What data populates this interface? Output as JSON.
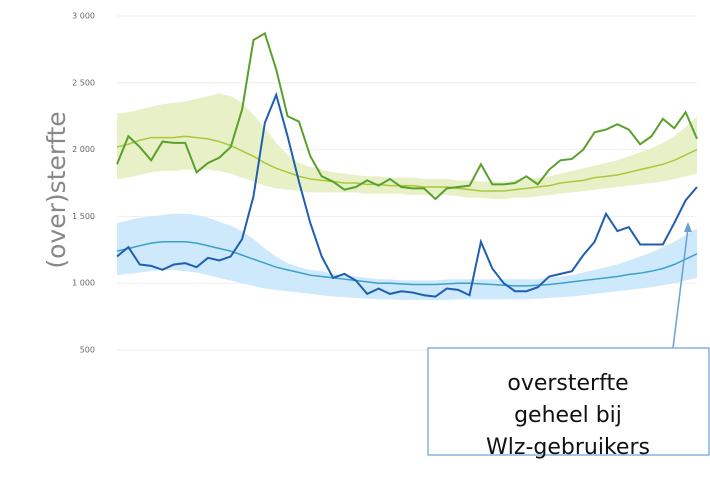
{
  "chart_data": {
    "type": "line",
    "y_label": "(over)sterfte",
    "ylim": [
      500,
      3000
    ],
    "yticks": [
      {
        "value": 500,
        "label": "500"
      },
      {
        "value": 1000,
        "label": "1 000"
      },
      {
        "value": 1500,
        "label": "1 500"
      },
      {
        "value": 2000,
        "label": "2 000"
      },
      {
        "value": 2500,
        "label": "2 500"
      },
      {
        "value": 3000,
        "label": "3 000"
      }
    ],
    "grid": true,
    "series": [
      {
        "color": "#3da0c8",
        "band_color": "#cde9fb",
        "values": [
          1240,
          1260,
          1280,
          1300,
          1310,
          1310,
          1310,
          1300,
          1280,
          1260,
          1240,
          1210,
          1180,
          1150,
          1120,
          1100,
          1080,
          1060,
          1050,
          1040,
          1030,
          1020,
          1010,
          1000,
          1000,
          995,
          990,
          990,
          990,
          995,
          1000,
          1000,
          995,
          990,
          985,
          980,
          980,
          985,
          990,
          1000,
          1010,
          1020,
          1030,
          1040,
          1050,
          1065,
          1075,
          1090,
          1110,
          1140,
          1180,
          1220
        ],
        "band_upper": [
          1450,
          1470,
          1490,
          1500,
          1510,
          1520,
          1520,
          1510,
          1490,
          1460,
          1430,
          1390,
          1330,
          1260,
          1200,
          1150,
          1120,
          1100,
          1090,
          1070,
          1060,
          1050,
          1040,
          1030,
          1030,
          1020,
          1020,
          1020,
          1020,
          1030,
          1030,
          1030,
          1030,
          1030,
          1030,
          1030,
          1030,
          1030,
          1040,
          1050,
          1060,
          1080,
          1100,
          1120,
          1140,
          1170,
          1200,
          1230,
          1270,
          1310,
          1360,
          1410
        ],
        "band_lower": [
          1060,
          1070,
          1080,
          1090,
          1100,
          1100,
          1090,
          1080,
          1060,
          1040,
          1020,
          1000,
          980,
          960,
          950,
          940,
          930,
          920,
          910,
          900,
          895,
          890,
          885,
          880,
          880,
          875,
          875,
          875,
          875,
          875,
          880,
          880,
          880,
          880,
          880,
          880,
          880,
          885,
          890,
          895,
          900,
          910,
          920,
          930,
          940,
          950,
          960,
          970,
          985,
          1000,
          1020,
          1040
        ]
      },
      {
        "color": "#a8c83a",
        "band_color": "#e8f0c8",
        "values": [
          2020,
          2040,
          2070,
          2090,
          2090,
          2090,
          2100,
          2090,
          2080,
          2060,
          2030,
          1990,
          1950,
          1900,
          1860,
          1830,
          1800,
          1780,
          1770,
          1760,
          1750,
          1750,
          1740,
          1740,
          1730,
          1730,
          1730,
          1720,
          1720,
          1720,
          1710,
          1700,
          1690,
          1690,
          1690,
          1700,
          1710,
          1720,
          1730,
          1750,
          1760,
          1770,
          1790,
          1800,
          1810,
          1830,
          1850,
          1870,
          1890,
          1920,
          1960,
          2000
        ],
        "band_upper": [
          2270,
          2280,
          2300,
          2320,
          2340,
          2350,
          2360,
          2380,
          2400,
          2420,
          2400,
          2350,
          2260,
          2160,
          2050,
          1960,
          1900,
          1870,
          1850,
          1830,
          1820,
          1810,
          1800,
          1800,
          1790,
          1790,
          1790,
          1780,
          1780,
          1780,
          1770,
          1770,
          1760,
          1760,
          1760,
          1770,
          1780,
          1790,
          1800,
          1820,
          1840,
          1860,
          1880,
          1900,
          1920,
          1950,
          1980,
          2010,
          2050,
          2100,
          2170,
          2250
        ],
        "band_lower": [
          1780,
          1790,
          1810,
          1830,
          1840,
          1840,
          1850,
          1850,
          1850,
          1840,
          1820,
          1790,
          1760,
          1730,
          1710,
          1700,
          1690,
          1680,
          1680,
          1680,
          1680,
          1680,
          1670,
          1670,
          1670,
          1670,
          1660,
          1660,
          1660,
          1660,
          1650,
          1640,
          1640,
          1630,
          1630,
          1640,
          1640,
          1650,
          1660,
          1670,
          1680,
          1690,
          1700,
          1710,
          1720,
          1730,
          1740,
          1750,
          1760,
          1780,
          1800,
          1820
        ]
      },
      {
        "color": "#5aa02c",
        "values": [
          1890,
          2100,
          2020,
          1920,
          2060,
          2050,
          2050,
          1830,
          1900,
          1940,
          2020,
          2300,
          2820,
          2870,
          2600,
          2250,
          2210,
          1950,
          1800,
          1760,
          1700,
          1720,
          1770,
          1730,
          1780,
          1720,
          1710,
          1710,
          1630,
          1710,
          1720,
          1730,
          1890,
          1740,
          1740,
          1750,
          1800,
          1740,
          1850,
          1920,
          1930,
          2000,
          2130,
          2150,
          2190,
          2150,
          2040,
          2100,
          2230,
          2160,
          2280,
          2080
        ]
      },
      {
        "color": "#1f5fae",
        "values": [
          1200,
          1270,
          1140,
          1130,
          1100,
          1140,
          1150,
          1120,
          1190,
          1170,
          1200,
          1330,
          1650,
          2200,
          2410,
          2100,
          1760,
          1450,
          1200,
          1040,
          1070,
          1020,
          920,
          960,
          920,
          940,
          930,
          910,
          900,
          960,
          950,
          910,
          1310,
          1110,
          1000,
          940,
          940,
          970,
          1050,
          1070,
          1090,
          1210,
          1310,
          1520,
          1390,
          1420,
          1290,
          1290,
          1290,
          1450,
          1620,
          1720
        ]
      }
    ],
    "annotation": [
      "oversterfte",
      "geheel bij",
      "Wlz-gebruikers"
    ]
  }
}
